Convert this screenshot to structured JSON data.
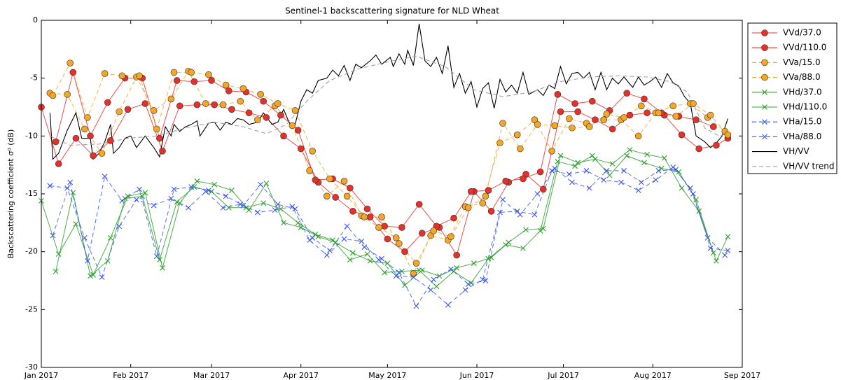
{
  "chart_data": {
    "type": "line",
    "title": "Sentinel-1 backscattering signature for NLD Wheat",
    "y_label": "Backscattering coefficient σ⁰ (dB)",
    "xlim": [
      0,
      243
    ],
    "xticks": [
      {
        "value": 0,
        "label": "Jan 2017"
      },
      {
        "value": 31,
        "label": "Feb 2017"
      },
      {
        "value": 59,
        "label": "Mar 2017"
      },
      {
        "value": 90,
        "label": "Apr 2017"
      },
      {
        "value": 120,
        "label": "May 2017"
      },
      {
        "value": 151,
        "label": "Jun 2017"
      },
      {
        "value": 181,
        "label": "Jul 2017"
      },
      {
        "value": 212,
        "label": "Aug 2017"
      },
      {
        "value": 243,
        "label": "Sep 2017"
      }
    ],
    "ylim": [
      -30,
      0
    ],
    "yticks": [
      -30,
      -25,
      -20,
      -15,
      -10,
      -5,
      0
    ],
    "legend": "outside-right",
    "series": [
      {
        "name": "VVd/37.0",
        "color": "#e8302a",
        "marker": "circle",
        "linestyle": "solid",
        "x": [
          0,
          6,
          12,
          18,
          24,
          30,
          36,
          42,
          48,
          54,
          60,
          66,
          72,
          78,
          84,
          90,
          96,
          102,
          108,
          114,
          120,
          126,
          132,
          138,
          144,
          150,
          156,
          162,
          168,
          174,
          180,
          186,
          192,
          198,
          204,
          210,
          216,
          222,
          228,
          234,
          238
        ],
        "values": [
          -7.5,
          -12.4,
          -10.2,
          -11.7,
          -10.4,
          -7.7,
          -7.2,
          -11.3,
          -7.4,
          -7.3,
          -7.3,
          -7.7,
          -8.0,
          -8.4,
          -10.0,
          -11.1,
          -14.0,
          -15.3,
          -16.5,
          -17.0,
          -18.9,
          -20.0,
          -18.4,
          -17.9,
          -20.3,
          -14.8,
          -16.5,
          -14.0,
          -13.3,
          -14.6,
          -7.9,
          -7.9,
          -8.6,
          -9.4,
          -8.2,
          -8.0,
          -8.2,
          -9.9,
          -11.1,
          -10.8,
          -10.2
        ]
      },
      {
        "name": "VVd/110.0",
        "color": "#e8302a",
        "marker": "circle",
        "linestyle": "solid",
        "x": [
          5,
          11,
          17,
          23,
          29,
          35,
          41,
          47,
          53,
          59,
          65,
          71,
          77,
          83,
          89,
          95,
          101,
          107,
          113,
          119,
          125,
          131,
          137,
          143,
          149,
          155,
          161,
          167,
          173,
          179,
          185,
          191,
          197,
          203,
          209,
          215,
          221,
          227,
          233
        ],
        "values": [
          -10.5,
          -4.5,
          -10.0,
          -7.1,
          -5.0,
          -5.0,
          -10.2,
          -5.2,
          -5.3,
          -5.2,
          -6.1,
          -6.2,
          -7.0,
          -8.2,
          -9.5,
          -13.8,
          -13.7,
          -14.5,
          -16.3,
          -17.8,
          -17.9,
          -15.9,
          -17.8,
          -17.1,
          -14.8,
          -14.7,
          -13.9,
          -13.7,
          -13.1,
          -6.4,
          -7.2,
          -7.0,
          -7.8,
          -6.3,
          -6.8,
          -8.0,
          -8.3,
          -8.6,
          -9.2
        ]
      },
      {
        "name": "VVa/15.0",
        "color": "#f5a623",
        "marker": "circle",
        "linestyle": "dashed",
        "x": [
          3,
          9,
          15,
          21,
          27,
          33,
          39,
          45,
          51,
          57,
          63,
          69,
          75,
          81,
          87,
          93,
          99,
          105,
          111,
          117,
          123,
          129,
          135,
          141,
          147,
          153,
          159,
          165,
          171,
          177,
          183,
          189,
          195,
          201,
          207,
          213,
          219,
          225,
          231,
          237
        ],
        "values": [
          -6.3,
          -6.4,
          -9.4,
          -11.5,
          -7.9,
          -4.9,
          -7.8,
          -6.8,
          -4.4,
          -7.2,
          -7.3,
          -7.0,
          -8.6,
          -7.4,
          -9.1,
          -13.0,
          -15.2,
          -13.9,
          -16.9,
          -17.9,
          -18.8,
          -21.9,
          -18.6,
          -19.0,
          -16.1,
          -15.8,
          -10.6,
          -9.9,
          -8.6,
          -11.3,
          -8.5,
          -8.9,
          -8.6,
          -8.6,
          -10.0,
          -8.0,
          -7.4,
          -7.2,
          -8.4,
          -9.6
        ]
      },
      {
        "name": "VVa/88.0",
        "color": "#f5a623",
        "marker": "circle",
        "linestyle": "dashed",
        "x": [
          4,
          10,
          16,
          22,
          28,
          34,
          40,
          46,
          52,
          58,
          64,
          70,
          76,
          82,
          88,
          94,
          100,
          106,
          112,
          118,
          124,
          130,
          136,
          142,
          148,
          154,
          160,
          166,
          172,
          178,
          184,
          190,
          196,
          202,
          208,
          214,
          220,
          226,
          232,
          238
        ],
        "values": [
          -6.5,
          -3.7,
          -8.4,
          -4.6,
          -4.8,
          -4.8,
          -9.4,
          -4.5,
          -4.5,
          -4.7,
          -5.6,
          -5.9,
          -6.4,
          -7.2,
          -7.8,
          -11.3,
          -13.7,
          -15.2,
          -17.0,
          -17.0,
          -19.3,
          -21.0,
          -18.2,
          -18.7,
          -16.2,
          -15.2,
          -8.9,
          -11.1,
          -9.0,
          -9.1,
          -9.3,
          -9.2,
          -8.1,
          -8.4,
          -7.4,
          -8.0,
          -8.3,
          -7.2,
          -8.2,
          -9.9
        ]
      },
      {
        "name": "VHd/37.0",
        "color": "#2ca02c",
        "marker": "x",
        "linestyle": "solid",
        "x": [
          0,
          6,
          12,
          18,
          24,
          30,
          36,
          42,
          48,
          54,
          60,
          66,
          72,
          78,
          84,
          90,
          96,
          102,
          108,
          114,
          120,
          126,
          132,
          138,
          144,
          150,
          156,
          162,
          168,
          174,
          180,
          186,
          192,
          198,
          204,
          210,
          216,
          222,
          228,
          234,
          238
        ],
        "values": [
          -15.6,
          -20.2,
          -17.6,
          -22.0,
          -18.8,
          -15.2,
          -14.9,
          -21.4,
          -15.8,
          -13.9,
          -14.2,
          -14.7,
          -16.4,
          -14.1,
          -17.5,
          -17.9,
          -18.7,
          -19.2,
          -20.1,
          -20.8,
          -21.0,
          -22.9,
          -21.6,
          -22.1,
          -21.4,
          -21.0,
          -20.5,
          -19.2,
          -18.1,
          -18.0,
          -11.7,
          -12.3,
          -12.0,
          -12.4,
          -11.2,
          -11.6,
          -11.9,
          -14.5,
          -16.5,
          -20.8,
          -18.7
        ]
      },
      {
        "name": "VHd/110.0",
        "color": "#2ca02c",
        "marker": "x",
        "linestyle": "solid",
        "x": [
          5,
          11,
          17,
          23,
          29,
          35,
          41,
          47,
          53,
          59,
          65,
          71,
          77,
          83,
          89,
          95,
          101,
          107,
          113,
          119,
          125,
          131,
          137,
          143,
          149,
          155,
          161,
          167,
          173,
          179,
          185,
          191,
          197,
          203,
          209,
          215,
          221,
          227,
          233
        ],
        "values": [
          -21.7,
          -14.9,
          -22.1,
          -20.8,
          -15.4,
          -15.2,
          -20.7,
          -15.7,
          -14.4,
          -14.8,
          -16.2,
          -16.2,
          -15.8,
          -16.3,
          -17.5,
          -18.5,
          -19.0,
          -20.7,
          -20.2,
          -21.8,
          -21.7,
          -21.6,
          -23.0,
          -21.7,
          -22.7,
          -20.6,
          -19.4,
          -19.7,
          -18.2,
          -12.2,
          -12.6,
          -11.7,
          -13.4,
          -11.7,
          -12.3,
          -12.8,
          -13.1,
          -15.5,
          -20.1
        ]
      },
      {
        "name": "VHa/15.0",
        "color": "#3a55f0",
        "marker": "x",
        "linestyle": "dashed",
        "x": [
          3,
          9,
          15,
          21,
          27,
          33,
          39,
          45,
          51,
          57,
          63,
          69,
          75,
          81,
          87,
          93,
          99,
          105,
          111,
          117,
          123,
          129,
          135,
          141,
          147,
          153,
          159,
          165,
          171,
          177,
          183,
          189,
          195,
          201,
          207,
          213,
          219,
          225,
          231,
          237
        ],
        "values": [
          -14.3,
          -14.5,
          -18.8,
          -22.2,
          -17.8,
          -15.5,
          -16.0,
          -15.4,
          -16.2,
          -14.8,
          -16.2,
          -15.9,
          -16.6,
          -16.4,
          -16.1,
          -19.0,
          -20.3,
          -18.9,
          -19.1,
          -20.7,
          -22.1,
          -22.2,
          -23.3,
          -24.6,
          -23.3,
          -22.4,
          -16.6,
          -16.5,
          -16.8,
          -13.0,
          -13.3,
          -13.0,
          -13.8,
          -14.0,
          -14.7,
          -13.8,
          -12.7,
          -14.5,
          -18.8,
          -20.3
        ]
      },
      {
        "name": "VHa/88.0",
        "color": "#3a55f0",
        "marker": "x",
        "linestyle": "dashed",
        "x": [
          4,
          10,
          16,
          22,
          28,
          34,
          40,
          46,
          52,
          58,
          64,
          70,
          76,
          82,
          88,
          94,
          100,
          106,
          112,
          118,
          124,
          130,
          136,
          142,
          148,
          154,
          160,
          166,
          172,
          178,
          184,
          190,
          196,
          202,
          208,
          214,
          220,
          226,
          232,
          238
        ],
        "values": [
          -18.6,
          -14.0,
          -20.8,
          -13.5,
          -15.6,
          -14.6,
          -20.4,
          -14.6,
          -14.4,
          -14.7,
          -15.2,
          -16.0,
          -14.2,
          -15.9,
          -16.3,
          -18.8,
          -19.9,
          -17.8,
          -19.6,
          -20.6,
          -21.8,
          -24.7,
          -22.4,
          -21.5,
          -22.8,
          -22.5,
          -15.5,
          -16.8,
          -15.0,
          -12.8,
          -14.0,
          -14.5,
          -13.0,
          -13.0,
          -14.0,
          -13.0,
          -12.9,
          -15.0,
          -19.7,
          -19.9
        ]
      },
      {
        "name": "VH/VV",
        "color": "#000000",
        "marker": "none",
        "linestyle": "solid",
        "x": [
          3,
          4,
          6,
          9,
          12,
          14,
          17,
          18,
          20,
          22,
          24,
          25,
          27,
          29,
          31,
          33,
          36,
          39,
          41,
          43,
          45,
          46,
          48,
          50,
          52,
          54,
          55,
          58,
          60,
          62,
          64,
          66,
          68,
          70,
          72,
          75,
          77,
          80,
          82,
          84,
          86,
          88,
          90,
          92,
          94,
          96,
          99,
          101,
          103,
          105,
          107,
          109,
          111,
          114,
          116,
          118,
          121,
          122,
          124,
          126,
          127,
          129,
          131,
          133,
          135,
          137,
          139,
          141,
          143,
          145,
          147,
          149,
          151,
          153,
          155,
          157,
          159,
          161,
          163,
          165,
          167,
          169,
          172,
          174,
          176,
          178,
          180,
          182,
          184,
          186,
          188,
          190,
          192,
          194,
          196,
          198,
          200,
          202,
          205,
          207,
          209,
          211,
          213,
          215,
          217,
          219,
          221,
          223,
          225,
          227,
          230,
          232,
          234,
          236,
          238
        ],
        "values": [
          -8.0,
          -12.0,
          -11.5,
          -9.5,
          -8.0,
          -10.2,
          -10.2,
          -12.0,
          -11.5,
          -10.5,
          -9.0,
          -11.5,
          -11.0,
          -10.2,
          -10.0,
          -11.0,
          -10.0,
          -11.0,
          -11.8,
          -9.2,
          -10.0,
          -9.0,
          -9.6,
          -9.2,
          -9.0,
          -8.7,
          -10.0,
          -8.9,
          -8.8,
          -9.5,
          -8.8,
          -9.0,
          -8.5,
          -8.6,
          -9.0,
          -8.8,
          -8.0,
          -9.0,
          -8.8,
          -7.7,
          -8.9,
          -9.0,
          -7.0,
          -6.0,
          -6.3,
          -5.2,
          -5.0,
          -4.3,
          -4.8,
          -3.9,
          -5.2,
          -3.8,
          -4.1,
          -3.5,
          -3.0,
          -3.8,
          -3.2,
          -4.0,
          -2.9,
          -3.8,
          -2.6,
          -3.9,
          -0.3,
          -3.5,
          -4.0,
          -3.2,
          -4.6,
          -2.2,
          -5.8,
          -4.6,
          -6.3,
          -5.3,
          -7.5,
          -5.9,
          -5.4,
          -7.6,
          -5.1,
          -6.2,
          -5.6,
          -6.3,
          -4.5,
          -6.4,
          -6.0,
          -6.5,
          -5.6,
          -5.9,
          -4.0,
          -5.5,
          -4.6,
          -4.5,
          -5.0,
          -4.5,
          -6.0,
          -4.5,
          -6.0,
          -5.0,
          -5.5,
          -4.9,
          -5.8,
          -4.9,
          -5.6,
          -5.3,
          -4.9,
          -5.8,
          -4.6,
          -5.4,
          -5.7,
          -6.6,
          -7.2,
          -10.0,
          -10.5,
          -11.0,
          -10.6,
          -10.0,
          -8.5
        ]
      },
      {
        "name": "VH/VV trend",
        "color": "#a0a0a0",
        "marker": "none",
        "linestyle": "dashed",
        "x": [
          3,
          10,
          20,
          30,
          40,
          50,
          60,
          70,
          78,
          85,
          92,
          100,
          110,
          120,
          130,
          140,
          150,
          160,
          170,
          180,
          190,
          200,
          210,
          218,
          224,
          230,
          235,
          238
        ],
        "values": [
          -10.0,
          -10.8,
          -10.7,
          -10.2,
          -10.0,
          -9.3,
          -8.8,
          -9.2,
          -9.8,
          -9.0,
          -7.0,
          -5.2,
          -4.2,
          -3.6,
          -3.1,
          -4.0,
          -6.0,
          -6.6,
          -6.2,
          -5.3,
          -4.9,
          -4.8,
          -4.9,
          -5.3,
          -6.2,
          -9.3,
          -10.0,
          -9.8
        ]
      }
    ]
  }
}
